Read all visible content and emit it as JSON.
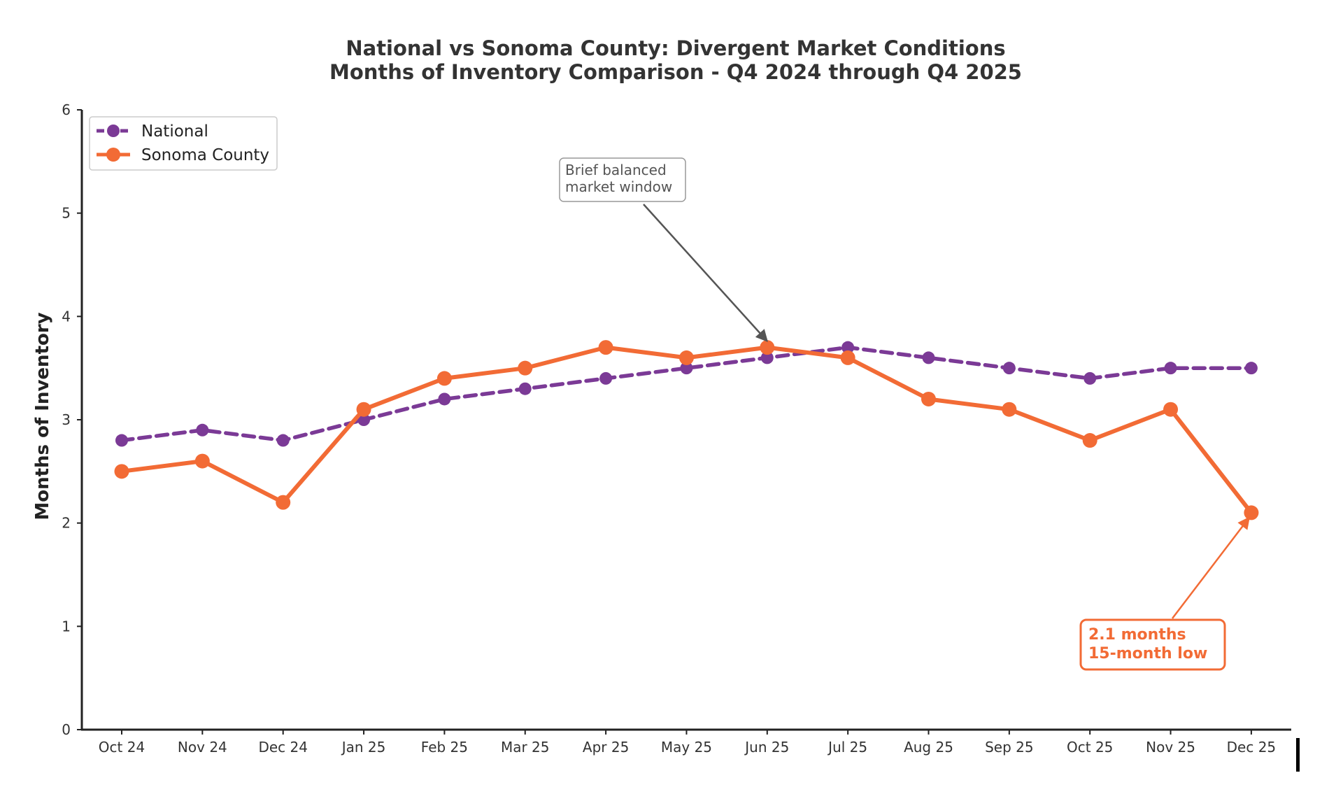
{
  "colors": {
    "national": "#7b3a96",
    "sonoma": "#f26b35",
    "axis": "#222222",
    "annotation_gray": "#555555",
    "background": "#ffffff"
  },
  "chart_data": {
    "type": "line",
    "title": "National vs Sonoma County: Divergent Market Conditions",
    "subtitle": "Months of Inventory Comparison - Q4 2024 through Q4 2025",
    "xlabel": "",
    "ylabel": "Months of Inventory",
    "ylim": [
      0,
      6
    ],
    "yticks": [
      "0",
      "1",
      "2",
      "3",
      "4",
      "5",
      "6"
    ],
    "grid": false,
    "legend_position": "top-left",
    "categories": [
      "Oct 24",
      "Nov 24",
      "Dec 24",
      "Jan 25",
      "Feb 25",
      "Mar 25",
      "Apr 25",
      "May 25",
      "Jun 25",
      "Jul 25",
      "Aug 25",
      "Sep 25",
      "Oct 25",
      "Nov 25",
      "Dec 25"
    ],
    "series": [
      {
        "name": "National",
        "style": "dashed",
        "values": [
          2.8,
          2.9,
          2.8,
          3.0,
          3.2,
          3.3,
          3.4,
          3.5,
          3.6,
          3.7,
          3.6,
          3.5,
          3.4,
          3.5,
          3.5
        ]
      },
      {
        "name": "Sonoma County",
        "style": "solid",
        "values": [
          2.5,
          2.6,
          2.2,
          3.1,
          3.4,
          3.5,
          3.7,
          3.6,
          3.7,
          3.6,
          3.2,
          3.1,
          2.8,
          3.1,
          2.1
        ]
      }
    ],
    "annotations": [
      {
        "lines": [
          "Brief balanced",
          "market window"
        ],
        "target_category": "Jun 25",
        "target_value": 3.7,
        "style": "gray"
      },
      {
        "lines": [
          "2.1 months",
          "15-month low"
        ],
        "target_category": "Dec 25",
        "target_value": 2.1,
        "style": "orange"
      }
    ]
  }
}
